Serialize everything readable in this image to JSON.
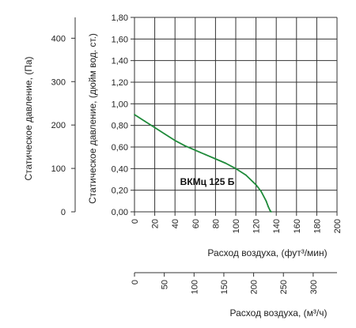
{
  "chart_data": {
    "type": "line",
    "series": [
      {
        "name": "ВКМц 125 Б",
        "color": "#1f8a3a",
        "x": [
          0,
          10,
          20,
          30,
          40,
          50,
          60,
          70,
          80,
          90,
          100,
          110,
          120,
          125,
          130,
          132,
          134,
          135
        ],
        "y": [
          0.9,
          0.84,
          0.78,
          0.72,
          0.66,
          0.61,
          0.57,
          0.53,
          0.49,
          0.45,
          0.4,
          0.34,
          0.25,
          0.19,
          0.1,
          0.05,
          0.01,
          0.0
        ]
      }
    ],
    "axes": {
      "x_cfm": {
        "label": "Расход воздуха, (фут³/мин)",
        "range": [
          0,
          200
        ],
        "ticks": [
          "0",
          "20",
          "40",
          "60",
          "80",
          "100",
          "120",
          "140",
          "160",
          "180",
          "200"
        ]
      },
      "x_m3h": {
        "label": "Расход воздуха, (м³/ч)",
        "range": [
          0,
          340
        ],
        "ticks": [
          "0",
          "50",
          "100",
          "150",
          "200",
          "250",
          "300"
        ]
      },
      "y_inwg": {
        "label": "Статическое давление, (дюйм вод. ст.)",
        "range": [
          0,
          1.8
        ],
        "ticks": [
          "0,00",
          "0,20",
          "0,40",
          "0,60",
          "0,80",
          "1,00",
          "1,20",
          "1,40",
          "1,60",
          "1,80"
        ]
      },
      "y_pa": {
        "label": "Статическое давление, (Па)",
        "range": [
          0,
          448
        ],
        "ticks": [
          "0",
          "100",
          "200",
          "300",
          "400"
        ]
      }
    },
    "grid": true,
    "legend": "inline-label"
  }
}
